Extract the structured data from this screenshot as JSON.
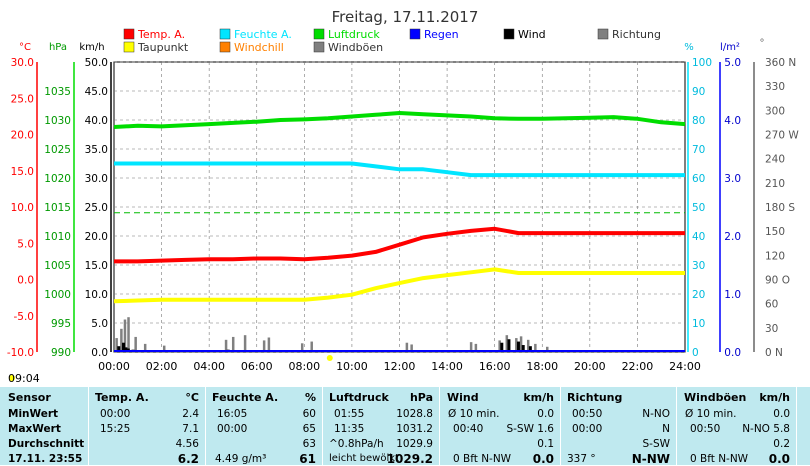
{
  "title": "Freitag, 17.11.2017",
  "time_now": "09:04",
  "legend": [
    {
      "label": "Temp. A.",
      "color": "#ff0000"
    },
    {
      "label": "Feuchte A.",
      "color": "#00e5ff"
    },
    {
      "label": "Luftdruck",
      "color": "#00dd00"
    },
    {
      "label": "Regen",
      "color": "#0000ff"
    },
    {
      "label": "Wind",
      "color": "#000000"
    },
    {
      "label": "Richtung",
      "color": "#808080"
    },
    {
      "label": "Taupunkt",
      "color": "#ffff00"
    },
    {
      "label": "Windchill",
      "color": "#ff8000"
    },
    {
      "label": "Windböen",
      "color": "#808080"
    }
  ],
  "axis_units": {
    "temp": "°C",
    "pressure": "hPa",
    "wind": "km/h",
    "humidity": "%",
    "rain": "l/m²",
    "direction": "°"
  },
  "colors": {
    "temp": "#ff0000",
    "humidity": "#00e5ff",
    "pressure": "#00dd00",
    "rain": "#0000ff",
    "wind": "#000000",
    "gust": "#808080",
    "dewpoint": "#ffff00",
    "ref_line": "#00bb00",
    "table_bg": "#bfe9ef"
  },
  "chart_data": {
    "type": "line",
    "x_ticks": [
      "00:00",
      "02:00",
      "04:00",
      "06:00",
      "08:00",
      "10:00",
      "12:00",
      "14:00",
      "16:00",
      "18:00",
      "20:00",
      "22:00",
      "24:00"
    ],
    "axes": {
      "temp": {
        "ticks": [
          "30.0",
          "25.0",
          "20.0",
          "15.0",
          "10.0",
          "5.0",
          "0.0",
          "-5.0",
          "-10.0"
        ],
        "range": [
          -10,
          30
        ]
      },
      "pressure": {
        "ticks": [
          "1035",
          "1030",
          "1025",
          "1020",
          "1015",
          "1010",
          "1005",
          "1000",
          "995",
          "990"
        ],
        "range": [
          990,
          1040
        ]
      },
      "wind": {
        "ticks": [
          "50.0",
          "45.0",
          "40.0",
          "35.0",
          "30.0",
          "25.0",
          "20.0",
          "15.0",
          "10.0",
          "5.0",
          "0.0"
        ],
        "range": [
          0,
          50
        ]
      },
      "humidity": {
        "ticks": [
          "100",
          "90",
          "80",
          "70",
          "60",
          "50",
          "40",
          "30",
          "20",
          "10",
          "0"
        ],
        "range": [
          0,
          100
        ]
      },
      "rain": {
        "ticks": [
          "5.0",
          "4.0",
          "3.0",
          "2.0",
          "1.0",
          "0.0"
        ],
        "range": [
          0,
          5
        ]
      },
      "direction": {
        "ticks": [
          "360 N",
          "330",
          "300",
          "270 W",
          "240",
          "210",
          "180 S",
          "150",
          "120",
          "90 O",
          "60",
          "30",
          "0 N"
        ],
        "range": [
          0,
          360
        ]
      }
    },
    "series": [
      {
        "name": "Temp. A.",
        "axis": "temp",
        "x": [
          0,
          1,
          2,
          3,
          4,
          5,
          6,
          7,
          8,
          9,
          10,
          11,
          12,
          13,
          14,
          15,
          16,
          17,
          18,
          19,
          20,
          21,
          22,
          23,
          24
        ],
        "y": [
          2.5,
          2.5,
          2.6,
          2.7,
          2.8,
          2.8,
          2.9,
          2.9,
          2.8,
          3.0,
          3.3,
          3.8,
          4.8,
          5.8,
          6.3,
          6.7,
          7.0,
          6.4,
          6.4,
          6.4,
          6.4,
          6.4,
          6.4,
          6.4,
          6.4
        ]
      },
      {
        "name": "Taupunkt",
        "axis": "temp",
        "x": [
          0,
          1,
          2,
          3,
          4,
          5,
          6,
          7,
          8,
          9,
          10,
          11,
          12,
          13,
          14,
          15,
          16,
          17,
          18,
          19,
          20,
          21,
          22,
          23,
          24
        ],
        "y": [
          -3.0,
          -2.9,
          -2.8,
          -2.8,
          -2.8,
          -2.8,
          -2.8,
          -2.8,
          -2.8,
          -2.5,
          -2.1,
          -1.2,
          -0.5,
          0.2,
          0.6,
          1.0,
          1.4,
          0.9,
          0.9,
          0.9,
          0.9,
          0.9,
          0.9,
          0.9,
          0.9
        ]
      },
      {
        "name": "Feuchte A.",
        "axis": "humidity",
        "x": [
          0,
          1,
          2,
          3,
          4,
          5,
          6,
          7,
          8,
          9,
          10,
          11,
          12,
          13,
          14,
          15,
          16,
          17,
          18,
          19,
          20,
          21,
          22,
          23,
          24
        ],
        "y": [
          65,
          65,
          65,
          65,
          65,
          65,
          65,
          65,
          65,
          65,
          65,
          64,
          63,
          63,
          62,
          61,
          61,
          61,
          61,
          61,
          61,
          61,
          61,
          61,
          61
        ]
      },
      {
        "name": "Luftdruck",
        "axis": "pressure",
        "x": [
          0,
          1,
          2,
          3,
          4,
          5,
          6,
          7,
          8,
          9,
          10,
          11,
          12,
          13,
          14,
          15,
          16,
          17,
          18,
          19,
          20,
          21,
          22,
          23,
          24
        ],
        "y": [
          1028.8,
          1029.0,
          1028.9,
          1029.1,
          1029.3,
          1029.5,
          1029.7,
          1030.0,
          1030.1,
          1030.3,
          1030.6,
          1030.9,
          1031.2,
          1031.0,
          1030.8,
          1030.6,
          1030.3,
          1030.2,
          1030.2,
          1030.3,
          1030.4,
          1030.5,
          1030.2,
          1029.6,
          1029.3
        ]
      }
    ],
    "ref_line": {
      "axis": "humidity",
      "value": 48
    },
    "wind": {
      "axis": "wind",
      "x": [
        0.2,
        0.4,
        0.5,
        0.6,
        0.8,
        1.2,
        1.6,
        2.0,
        4.8,
        5.2,
        5.8,
        7.4,
        10.0,
        14.2,
        15.0,
        16.3,
        16.6,
        17.0,
        17.2,
        17.5
      ],
      "y": [
        1.0,
        1.6,
        0.8,
        0.6,
        0.4,
        0.3,
        0.2,
        0.2,
        0.4,
        0.3,
        0.3,
        0.2,
        0.3,
        0.3,
        0.3,
        1.6,
        2.2,
        1.8,
        1.2,
        1.0
      ]
    },
    "gusts": {
      "axis": "wind",
      "x": [
        0.1,
        0.3,
        0.45,
        0.6,
        0.9,
        1.3,
        2.1,
        4.7,
        5.0,
        5.5,
        6.3,
        6.5,
        7.9,
        8.3,
        12.3,
        12.5,
        15.0,
        15.2,
        16.2,
        16.5,
        16.9,
        17.1,
        17.4,
        17.7,
        18.2
      ],
      "y": [
        2.4,
        4.0,
        5.6,
        6.0,
        2.6,
        1.4,
        1.1,
        2.1,
        2.6,
        2.9,
        2.0,
        2.5,
        1.5,
        1.8,
        1.6,
        1.3,
        1.7,
        1.4,
        2.0,
        2.9,
        2.4,
        2.7,
        2.1,
        1.4,
        0.9
      ]
    }
  },
  "table": {
    "sensor": {
      "header": "Sensor",
      "rows": [
        "MinWert",
        "MaxWert",
        "Durchschnitt",
        "17.11. 23:55"
      ]
    },
    "temp": {
      "header": "Temp. A.",
      "unit": "°C",
      "times": [
        "00:00",
        "15:25",
        "",
        ""
      ],
      "values": [
        "2.4",
        "7.1",
        "4.56",
        "6.2"
      ]
    },
    "feuchte": {
      "header": "Feuchte A.",
      "unit": "%",
      "times": [
        "16:05",
        "00:00",
        "",
        "4.49 g/m³"
      ],
      "values": [
        "60",
        "65",
        "63",
        "61"
      ]
    },
    "luftdruck": {
      "header": "Luftdruck",
      "unit": "hPa",
      "times": [
        "01:55",
        "11:35",
        "^0.8hPa/h",
        "leicht bewölkt"
      ],
      "values": [
        "1028.8",
        "1031.2",
        "1029.9",
        "1029.2"
      ]
    },
    "wind": {
      "header": "Wind",
      "unit": "km/h",
      "times": [
        "Ø 10 min.",
        "00:40",
        "",
        "0 Bft N-NW"
      ],
      "mids": [
        "",
        "S-SW 1.6",
        "",
        ""
      ],
      "values": [
        "0.0",
        "",
        "0.1",
        "0.0"
      ]
    },
    "richtung": {
      "header": "Richtung",
      "times": [
        "00:50",
        "00:00",
        "",
        "337 °"
      ],
      "values": [
        "N-NO",
        "N",
        "S-SW",
        "N-NW"
      ]
    },
    "windboeen": {
      "header": "Windböen",
      "unit": "km/h",
      "times": [
        "Ø 10 min.",
        "00:50",
        "",
        "0 Bft N-NW"
      ],
      "mids": [
        "",
        "N-NO 5.8",
        "",
        ""
      ],
      "values": [
        "0.0",
        "",
        "0.2",
        "0.0"
      ]
    }
  }
}
